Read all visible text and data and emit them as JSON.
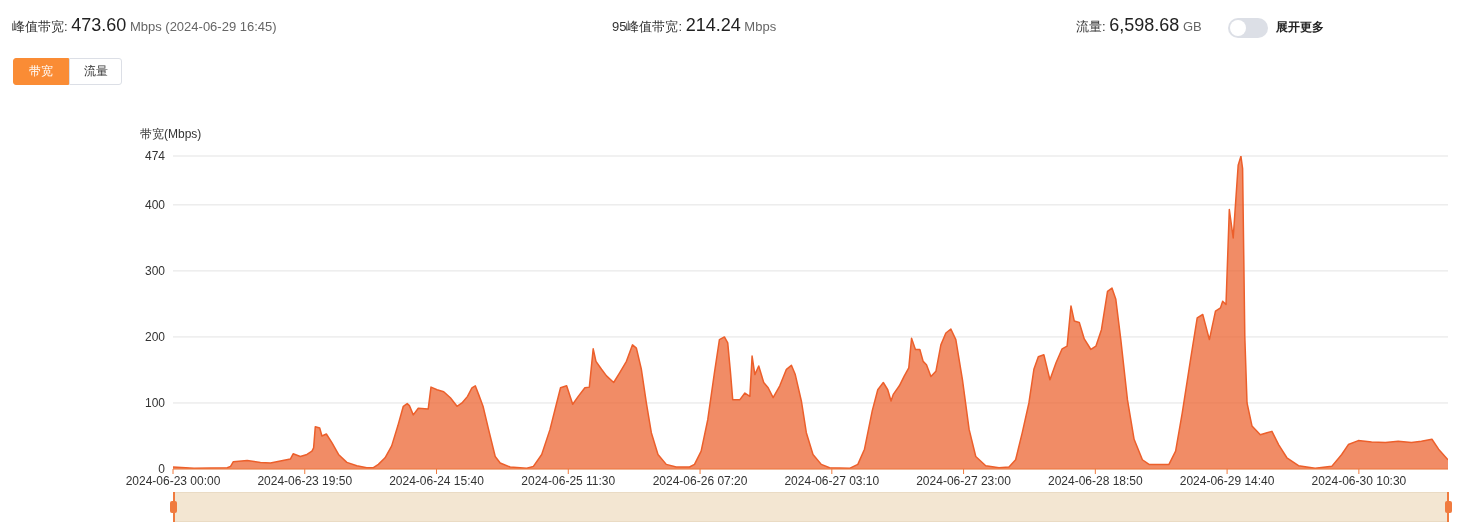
{
  "chart_data": {
    "type": "area",
    "ylabel": "带宽(Mbps)",
    "color": "#ec5f2b",
    "annotations": [
      "峰值带宽: 473.60 Mbps (2024-06-29 16:45)",
      "95峰值带宽: 214.24 Mbps",
      "流量: 6,598.68 GB",
      "展开更多",
      "带宽",
      "流量"
    ],
    "x": [
      "2024-06-23T00:00",
      "2024-06-23T03:10",
      "2024-06-23T08:10",
      "2024-06-23T08:40",
      "2024-06-23T09:05",
      "2024-06-23T11:10",
      "2024-06-23T13:10",
      "2024-06-23T14:40",
      "2024-06-23T16:10",
      "2024-06-23T17:40",
      "2024-06-23T18:05",
      "2024-06-23T19:10",
      "2024-06-23T20:10",
      "2024-06-23T20:55",
      "2024-06-23T21:10",
      "2024-06-23T21:25",
      "2024-06-23T22:05",
      "2024-06-23T22:25",
      "2024-06-23T23:05",
      "2024-06-23T23:55",
      "2024-06-24T00:55",
      "2024-06-24T02:10",
      "2024-06-24T03:40",
      "2024-06-24T05:10",
      "2024-06-24T06:10",
      "2024-06-24T06:55",
      "2024-06-24T07:55",
      "2024-06-24T08:55",
      "2024-06-24T09:50",
      "2024-06-24T10:40",
      "2024-06-24T11:15",
      "2024-06-24T11:35",
      "2024-06-24T12:10",
      "2024-06-24T12:55",
      "2024-06-24T14:25",
      "2024-06-24T14:50",
      "2024-06-24T15:45",
      "2024-06-24T16:45",
      "2024-06-24T17:45",
      "2024-06-24T18:45",
      "2024-06-24T19:30",
      "2024-06-24T20:20",
      "2024-06-24T21:00",
      "2024-06-24T21:30",
      "2024-06-24T22:00",
      "2024-06-24T22:40",
      "2024-06-24T23:30",
      "2024-06-25T00:30",
      "2024-06-25T01:15",
      "2024-06-25T02:45",
      "2024-06-25T05:15",
      "2024-06-25T06:15",
      "2024-06-25T07:30",
      "2024-06-25T08:45",
      "2024-06-25T09:45",
      "2024-06-25T10:20",
      "2024-06-25T11:15",
      "2024-06-25T12:10",
      "2024-06-25T13:00",
      "2024-06-25T14:00",
      "2024-06-25T14:40",
      "2024-06-25T15:15",
      "2024-06-25T15:40",
      "2024-06-25T16:30",
      "2024-06-25T17:15",
      "2024-06-25T18:20",
      "2024-06-25T19:15",
      "2024-06-25T20:15",
      "2024-06-25T21:10",
      "2024-06-25T21:45",
      "2024-06-25T22:30",
      "2024-06-25T23:15",
      "2024-06-26T00:00",
      "2024-06-26T01:00",
      "2024-06-26T02:15",
      "2024-06-26T03:45",
      "2024-06-26T05:45",
      "2024-06-26T06:30",
      "2024-06-26T07:30",
      "2024-06-26T08:30",
      "2024-06-26T09:30",
      "2024-06-26T10:15",
      "2024-06-26T11:00",
      "2024-06-26T11:30",
      "2024-06-26T11:55",
      "2024-06-26T12:15",
      "2024-06-26T13:20",
      "2024-06-26T14:05",
      "2024-06-26T14:50",
      "2024-06-26T15:10",
      "2024-06-26T15:35",
      "2024-06-26T16:10",
      "2024-06-26T16:55",
      "2024-06-26T17:35",
      "2024-06-26T18:20",
      "2024-06-26T19:20",
      "2024-06-26T20:20",
      "2024-06-26T21:05",
      "2024-06-26T21:40",
      "2024-06-26T22:35",
      "2024-06-26T23:20",
      "2024-06-27T00:20",
      "2024-06-27T01:35",
      "2024-06-27T02:50",
      "2024-06-27T05:50",
      "2024-06-27T07:05",
      "2024-06-27T08:05",
      "2024-06-27T09:15",
      "2024-06-27T10:05",
      "2024-06-27T10:55",
      "2024-06-27T11:35",
      "2024-06-27T12:05",
      "2024-06-27T12:25",
      "2024-06-27T13:20",
      "2024-06-27T14:05",
      "2024-06-27T14:45",
      "2024-06-27T15:10",
      "2024-06-27T15:45",
      "2024-06-27T16:25",
      "2024-06-27T16:55",
      "2024-06-27T17:25",
      "2024-06-27T18:05",
      "2024-06-27T18:50",
      "2024-06-27T19:35",
      "2024-06-27T20:20",
      "2024-06-27T21:05",
      "2024-06-27T21:50",
      "2024-06-27T22:50",
      "2024-06-27T23:50",
      "2024-06-28T00:50",
      "2024-06-28T02:20",
      "2024-06-28T04:20",
      "2024-06-28T05:50",
      "2024-06-28T06:50",
      "2024-06-28T07:50",
      "2024-06-28T08:50",
      "2024-06-28T09:35",
      "2024-06-28T10:15",
      "2024-06-28T11:05",
      "2024-06-28T12:00",
      "2024-06-28T12:55",
      "2024-06-28T13:50",
      "2024-06-28T14:35",
      "2024-06-28T15:10",
      "2024-06-28T15:40",
      "2024-06-28T16:25",
      "2024-06-28T17:10",
      "2024-06-28T18:10",
      "2024-06-28T18:55",
      "2024-06-28T19:45",
      "2024-06-28T20:40",
      "2024-06-28T21:20",
      "2024-06-28T21:55",
      "2024-06-28T22:40",
      "2024-06-28T23:40",
      "2024-06-29T00:40",
      "2024-06-29T01:55",
      "2024-06-29T02:55",
      "2024-06-29T04:25",
      "2024-06-29T05:55",
      "2024-06-29T06:55",
      "2024-06-29T07:55",
      "2024-06-29T09:10",
      "2024-06-29T10:10",
      "2024-06-29T11:00",
      "2024-06-29T12:00",
      "2024-06-29T12:55",
      "2024-06-29T13:40",
      "2024-06-29T14:00",
      "2024-06-29T14:30",
      "2024-06-29T15:00",
      "2024-06-29T15:35",
      "2024-06-29T16:20",
      "2024-06-29T16:45",
      "2024-06-29T17:00",
      "2024-06-29T17:20",
      "2024-06-29T17:40",
      "2024-06-29T18:25",
      "2024-06-29T19:40",
      "2024-06-29T20:40",
      "2024-06-29T21:25",
      "2024-06-29T22:25",
      "2024-06-29T23:40",
      "2024-06-30T01:25",
      "2024-06-30T03:55",
      "2024-06-30T06:25",
      "2024-06-30T07:55",
      "2024-06-30T08:55",
      "2024-06-30T10:25",
      "2024-06-30T12:25",
      "2024-06-30T14:30",
      "2024-06-30T16:25",
      "2024-06-30T18:25",
      "2024-06-30T19:55",
      "2024-06-30T21:30",
      "2024-06-30T22:30",
      "2024-06-30T23:55"
    ],
    "values": [
      3,
      1,
      2,
      4,
      11,
      13,
      10,
      9,
      12,
      15,
      23,
      19,
      22,
      27,
      32,
      64,
      62,
      50,
      53,
      40,
      22,
      10,
      5,
      2,
      2,
      7,
      17,
      35,
      65,
      95,
      99,
      96,
      82,
      92,
      91,
      124,
      120,
      117,
      108,
      95,
      100,
      110,
      123,
      126,
      113,
      95,
      60,
      19,
      9,
      3,
      1,
      4,
      22,
      60,
      100,
      123,
      126,
      98,
      110,
      123,
      124,
      182,
      163,
      151,
      141,
      131,
      146,
      163,
      188,
      183,
      151,
      100,
      55,
      22,
      7,
      3,
      3,
      7,
      27,
      75,
      146,
      196,
      200,
      191,
      146,
      105,
      105,
      115,
      110,
      171,
      143,
      156,
      131,
      123,
      108,
      126,
      151,
      157,
      143,
      103,
      55,
      22,
      7,
      2,
      1,
      7,
      30,
      88,
      120,
      131,
      120,
      103,
      113,
      126,
      141,
      153,
      198,
      181,
      181,
      163,
      158,
      140,
      148,
      188,
      206,
      212,
      196,
      135,
      60,
      19,
      5,
      2,
      3,
      14,
      55,
      100,
      151,
      170,
      173,
      135,
      161,
      182,
      186,
      247,
      224,
      222,
      197,
      181,
      186,
      211,
      269,
      274,
      257,
      196,
      105,
      45,
      14,
      7,
      7,
      7,
      27,
      85,
      166,
      229,
      234,
      196,
      239,
      244,
      254,
      249,
      393,
      350,
      460,
      473.6,
      455,
      200,
      100,
      65,
      52,
      55,
      57,
      37,
      17,
      5,
      1,
      4,
      22,
      37,
      43,
      41,
      40,
      42,
      40,
      42,
      45,
      30,
      14
    ],
    "xlim": [
      "2024-06-23T00:00",
      "2024-06-30T23:55"
    ],
    "xticks": [
      {
        "value": "2024-06-23T00:00",
        "label": "2024-06-23 00:00"
      },
      {
        "value": "2024-06-23T19:50",
        "label": "2024-06-23 19:50"
      },
      {
        "value": "2024-06-24T15:40",
        "label": "2024-06-24 15:40"
      },
      {
        "value": "2024-06-25T11:30",
        "label": "2024-06-25 11:30"
      },
      {
        "value": "2024-06-26T07:20",
        "label": "2024-06-26 07:20"
      },
      {
        "value": "2024-06-27T03:10",
        "label": "2024-06-27 03:10"
      },
      {
        "value": "2024-06-27T23:00",
        "label": "2024-06-27 23:00"
      },
      {
        "value": "2024-06-28T18:50",
        "label": "2024-06-28 18:50"
      },
      {
        "value": "2024-06-29T14:40",
        "label": "2024-06-29 14:40"
      },
      {
        "value": "2024-06-30T10:30",
        "label": "2024-06-30 10:30"
      }
    ],
    "ylim": [
      0,
      474
    ],
    "yticks": [
      0,
      100,
      200,
      300,
      400,
      474
    ],
    "grid": "y"
  }
}
